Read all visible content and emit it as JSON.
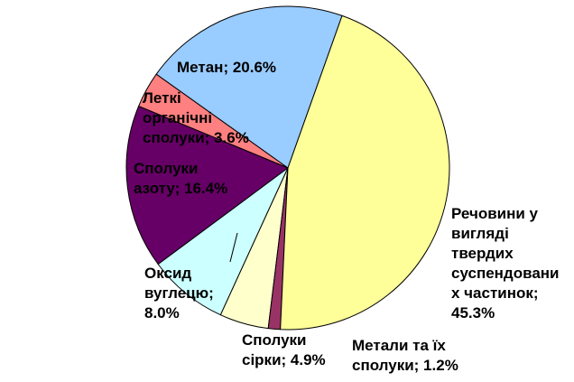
{
  "chart_data": {
    "type": "pie",
    "values": [
      45.3,
      1.2,
      4.9,
      8.0,
      16.4,
      3.6,
      20.6
    ],
    "value_labels": [
      "Речовини у\nвигляді\nтвердих\nсуспендовани\nх частинок;\n45.3%",
      "Метали та їх\nсполуки; 1.2%",
      "Сполуки\nсірки; 4.9%",
      "Оксид\nвуглецю;\n8.0%",
      "Сполуки\nазоту; 16.4%",
      "Леткі\nорганічні\nсполуки; 3.6%",
      "Метан; 20.6%"
    ],
    "colors": [
      "#FFFF99",
      "#993366",
      "#FFFFCC",
      "#CCFFFF",
      "#660066",
      "#FF8080",
      "#99CCFF"
    ]
  }
}
